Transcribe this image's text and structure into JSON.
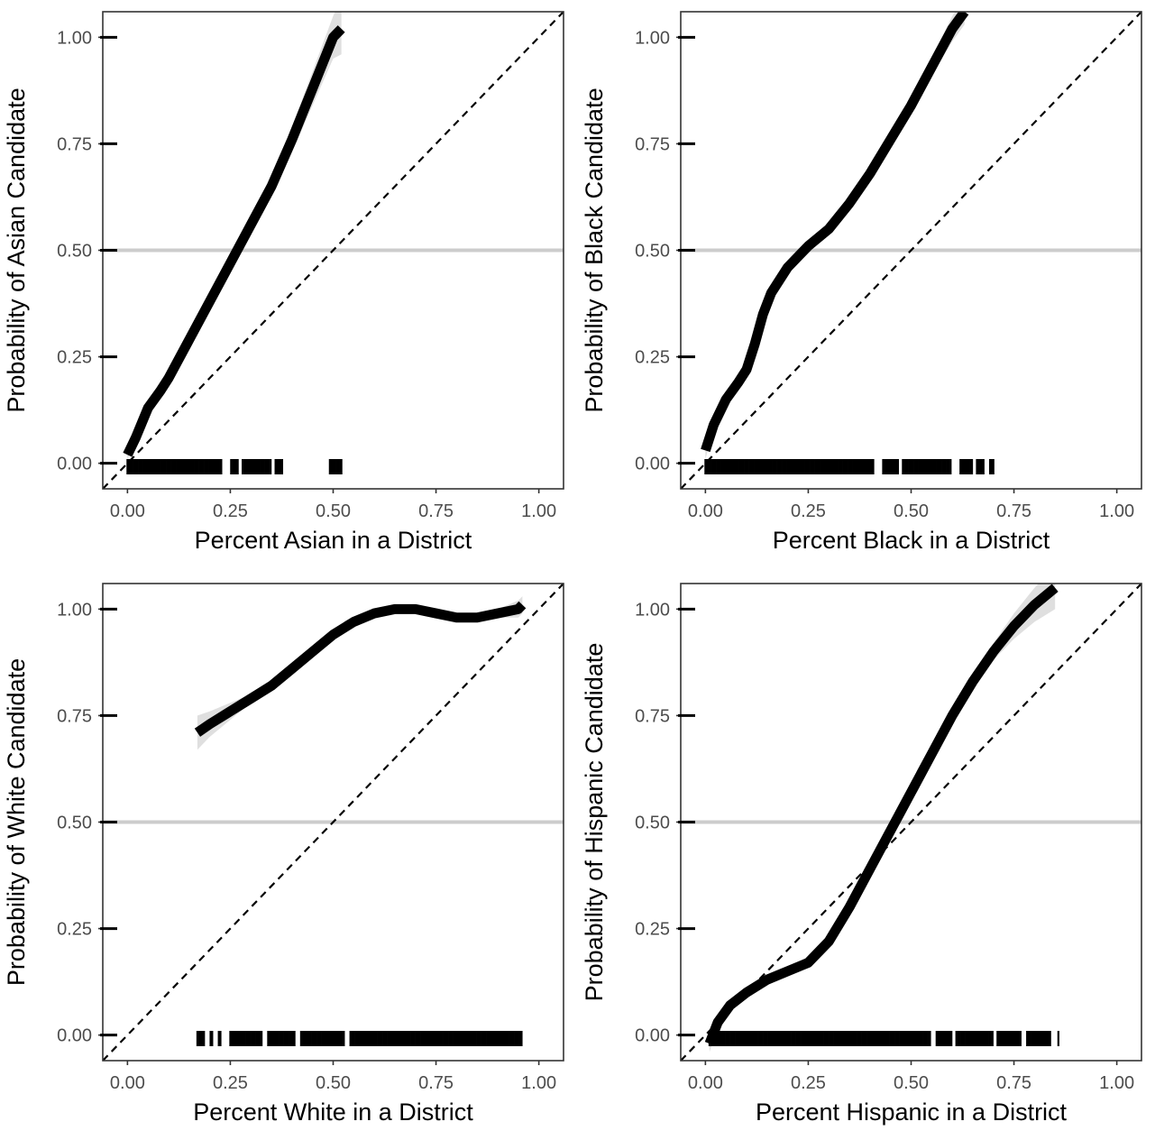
{
  "chart_data": [
    {
      "type": "line",
      "xlabel": "Percent Asian in a District",
      "ylabel": "Probability of Asian Candidate",
      "xlim": [
        -0.06,
        1.06
      ],
      "ylim": [
        -0.06,
        1.06
      ],
      "x_ticks": [
        "0.00",
        "0.25",
        "0.50",
        "0.75",
        "1.00"
      ],
      "y_ticks": [
        "0.00",
        "0.25",
        "0.50",
        "0.75",
        "1.00"
      ],
      "reference_line": {
        "type": "hline",
        "y": 0.5,
        "color": "#cccccc"
      },
      "diagonal": {
        "x": [
          -0.06,
          1.06
        ],
        "y": [
          -0.06,
          1.06
        ],
        "style": "dashed"
      },
      "smooth": {
        "x": [
          0.0,
          0.02,
          0.05,
          0.08,
          0.1,
          0.15,
          0.2,
          0.25,
          0.3,
          0.35,
          0.4,
          0.45,
          0.5,
          0.52
        ],
        "y": [
          0.02,
          0.06,
          0.13,
          0.17,
          0.2,
          0.29,
          0.38,
          0.47,
          0.56,
          0.65,
          0.76,
          0.88,
          1.0,
          1.02
        ],
        "band_upper": [
          0.04,
          0.08,
          0.14,
          0.18,
          0.21,
          0.3,
          0.39,
          0.48,
          0.57,
          0.67,
          0.79,
          0.92,
          1.05,
          1.09
        ],
        "band_lower": [
          0.01,
          0.05,
          0.12,
          0.16,
          0.19,
          0.28,
          0.37,
          0.46,
          0.55,
          0.63,
          0.73,
          0.84,
          0.95,
          0.96
        ]
      },
      "rug": {
        "start": 0.0,
        "end": 0.52,
        "step": 0.004,
        "skip_ranges": [
          [
            0.23,
            0.25
          ],
          [
            0.27,
            0.28
          ],
          [
            0.35,
            0.36
          ],
          [
            0.38,
            0.49
          ]
        ]
      }
    },
    {
      "type": "line",
      "xlabel": "Percent Black in a District",
      "ylabel": "Probability of Black Candidate",
      "xlim": [
        -0.06,
        1.06
      ],
      "ylim": [
        -0.06,
        1.06
      ],
      "x_ticks": [
        "0.00",
        "0.25",
        "0.50",
        "0.75",
        "1.00"
      ],
      "y_ticks": [
        "0.00",
        "0.25",
        "0.50",
        "0.75",
        "1.00"
      ],
      "reference_line": {
        "type": "hline",
        "y": 0.5,
        "color": "#cccccc"
      },
      "diagonal": {
        "x": [
          -0.06,
          1.06
        ],
        "y": [
          -0.06,
          1.06
        ],
        "style": "dashed"
      },
      "smooth": {
        "x": [
          0.0,
          0.02,
          0.05,
          0.08,
          0.1,
          0.12,
          0.14,
          0.16,
          0.2,
          0.25,
          0.3,
          0.35,
          0.4,
          0.45,
          0.5,
          0.55,
          0.6,
          0.63
        ],
        "y": [
          0.03,
          0.09,
          0.15,
          0.19,
          0.22,
          0.28,
          0.35,
          0.4,
          0.46,
          0.51,
          0.55,
          0.61,
          0.68,
          0.76,
          0.84,
          0.93,
          1.02,
          1.06
        ],
        "band_upper": [
          0.05,
          0.1,
          0.16,
          0.2,
          0.23,
          0.29,
          0.36,
          0.41,
          0.47,
          0.52,
          0.56,
          0.62,
          0.69,
          0.77,
          0.86,
          0.95,
          1.05,
          1.09
        ],
        "band_lower": [
          0.01,
          0.08,
          0.14,
          0.18,
          0.21,
          0.27,
          0.34,
          0.39,
          0.45,
          0.5,
          0.54,
          0.6,
          0.67,
          0.75,
          0.82,
          0.91,
          0.99,
          1.03
        ]
      },
      "rug": {
        "start": 0.0,
        "end": 0.7,
        "step": 0.004,
        "skip_ranges": [
          [
            0.41,
            0.43
          ],
          [
            0.47,
            0.48
          ],
          [
            0.6,
            0.62
          ],
          [
            0.65,
            0.66
          ],
          [
            0.68,
            0.69
          ]
        ]
      }
    },
    {
      "type": "line",
      "xlabel": "Percent White in a District",
      "ylabel": "Probability of White Candidate",
      "xlim": [
        -0.06,
        1.06
      ],
      "ylim": [
        -0.06,
        1.06
      ],
      "x_ticks": [
        "0.00",
        "0.25",
        "0.50",
        "0.75",
        "1.00"
      ],
      "y_ticks": [
        "0.00",
        "0.25",
        "0.50",
        "0.75",
        "1.00"
      ],
      "reference_line": {
        "type": "hline",
        "y": 0.5,
        "color": "#cccccc"
      },
      "diagonal": {
        "x": [
          -0.06,
          1.06
        ],
        "y": [
          -0.06,
          1.06
        ],
        "style": "dashed"
      },
      "smooth": {
        "x": [
          0.17,
          0.2,
          0.25,
          0.3,
          0.35,
          0.4,
          0.45,
          0.5,
          0.55,
          0.6,
          0.65,
          0.7,
          0.75,
          0.8,
          0.85,
          0.9,
          0.95,
          0.96
        ],
        "y": [
          0.71,
          0.73,
          0.76,
          0.79,
          0.82,
          0.86,
          0.9,
          0.94,
          0.97,
          0.99,
          1.0,
          1.0,
          0.99,
          0.98,
          0.98,
          0.99,
          1.0,
          1.01
        ],
        "band_upper": [
          0.75,
          0.76,
          0.78,
          0.8,
          0.83,
          0.87,
          0.91,
          0.95,
          0.98,
          1.0,
          1.01,
          1.01,
          1.0,
          0.99,
          0.99,
          1.0,
          1.02,
          1.03
        ],
        "band_lower": [
          0.67,
          0.7,
          0.74,
          0.78,
          0.81,
          0.85,
          0.89,
          0.93,
          0.96,
          0.98,
          0.99,
          0.99,
          0.98,
          0.97,
          0.97,
          0.98,
          0.98,
          0.99
        ]
      },
      "rug": {
        "start": 0.17,
        "end": 0.96,
        "step": 0.004,
        "skip_ranges": [
          [
            0.19,
            0.2
          ],
          [
            0.21,
            0.22
          ],
          [
            0.23,
            0.25
          ],
          [
            0.33,
            0.34
          ],
          [
            0.41,
            0.42
          ],
          [
            0.53,
            0.54
          ]
        ]
      }
    },
    {
      "type": "line",
      "xlabel": "Percent Hispanic in a District",
      "ylabel": "Probability of Hispanic Candidate",
      "xlim": [
        -0.06,
        1.06
      ],
      "ylim": [
        -0.06,
        1.06
      ],
      "x_ticks": [
        "0.00",
        "0.25",
        "0.50",
        "0.75",
        "1.00"
      ],
      "y_ticks": [
        "0.00",
        "0.25",
        "0.50",
        "0.75",
        "1.00"
      ],
      "reference_line": {
        "type": "hline",
        "y": 0.5,
        "color": "#cccccc"
      },
      "diagonal": {
        "x": [
          -0.06,
          1.06
        ],
        "y": [
          -0.06,
          1.06
        ],
        "style": "dashed"
      },
      "smooth": {
        "x": [
          0.01,
          0.03,
          0.06,
          0.1,
          0.15,
          0.2,
          0.25,
          0.3,
          0.35,
          0.4,
          0.45,
          0.5,
          0.55,
          0.6,
          0.65,
          0.7,
          0.75,
          0.8,
          0.85
        ],
        "y": [
          -0.02,
          0.03,
          0.07,
          0.1,
          0.13,
          0.15,
          0.17,
          0.22,
          0.3,
          0.39,
          0.48,
          0.57,
          0.66,
          0.75,
          0.83,
          0.9,
          0.96,
          1.01,
          1.05
        ],
        "band_upper": [
          0.0,
          0.04,
          0.08,
          0.11,
          0.14,
          0.16,
          0.18,
          0.23,
          0.31,
          0.4,
          0.49,
          0.58,
          0.67,
          0.76,
          0.85,
          0.92,
          0.99,
          1.05,
          1.1
        ],
        "band_lower": [
          -0.04,
          0.02,
          0.06,
          0.09,
          0.12,
          0.14,
          0.16,
          0.21,
          0.29,
          0.38,
          0.47,
          0.56,
          0.65,
          0.74,
          0.81,
          0.88,
          0.93,
          0.97,
          1.0
        ]
      },
      "rug": {
        "start": 0.01,
        "end": 0.86,
        "step": 0.004,
        "skip_ranges": [
          [
            0.55,
            0.56
          ],
          [
            0.6,
            0.61
          ],
          [
            0.7,
            0.71
          ],
          [
            0.77,
            0.78
          ],
          [
            0.84,
            0.855
          ]
        ]
      }
    }
  ]
}
